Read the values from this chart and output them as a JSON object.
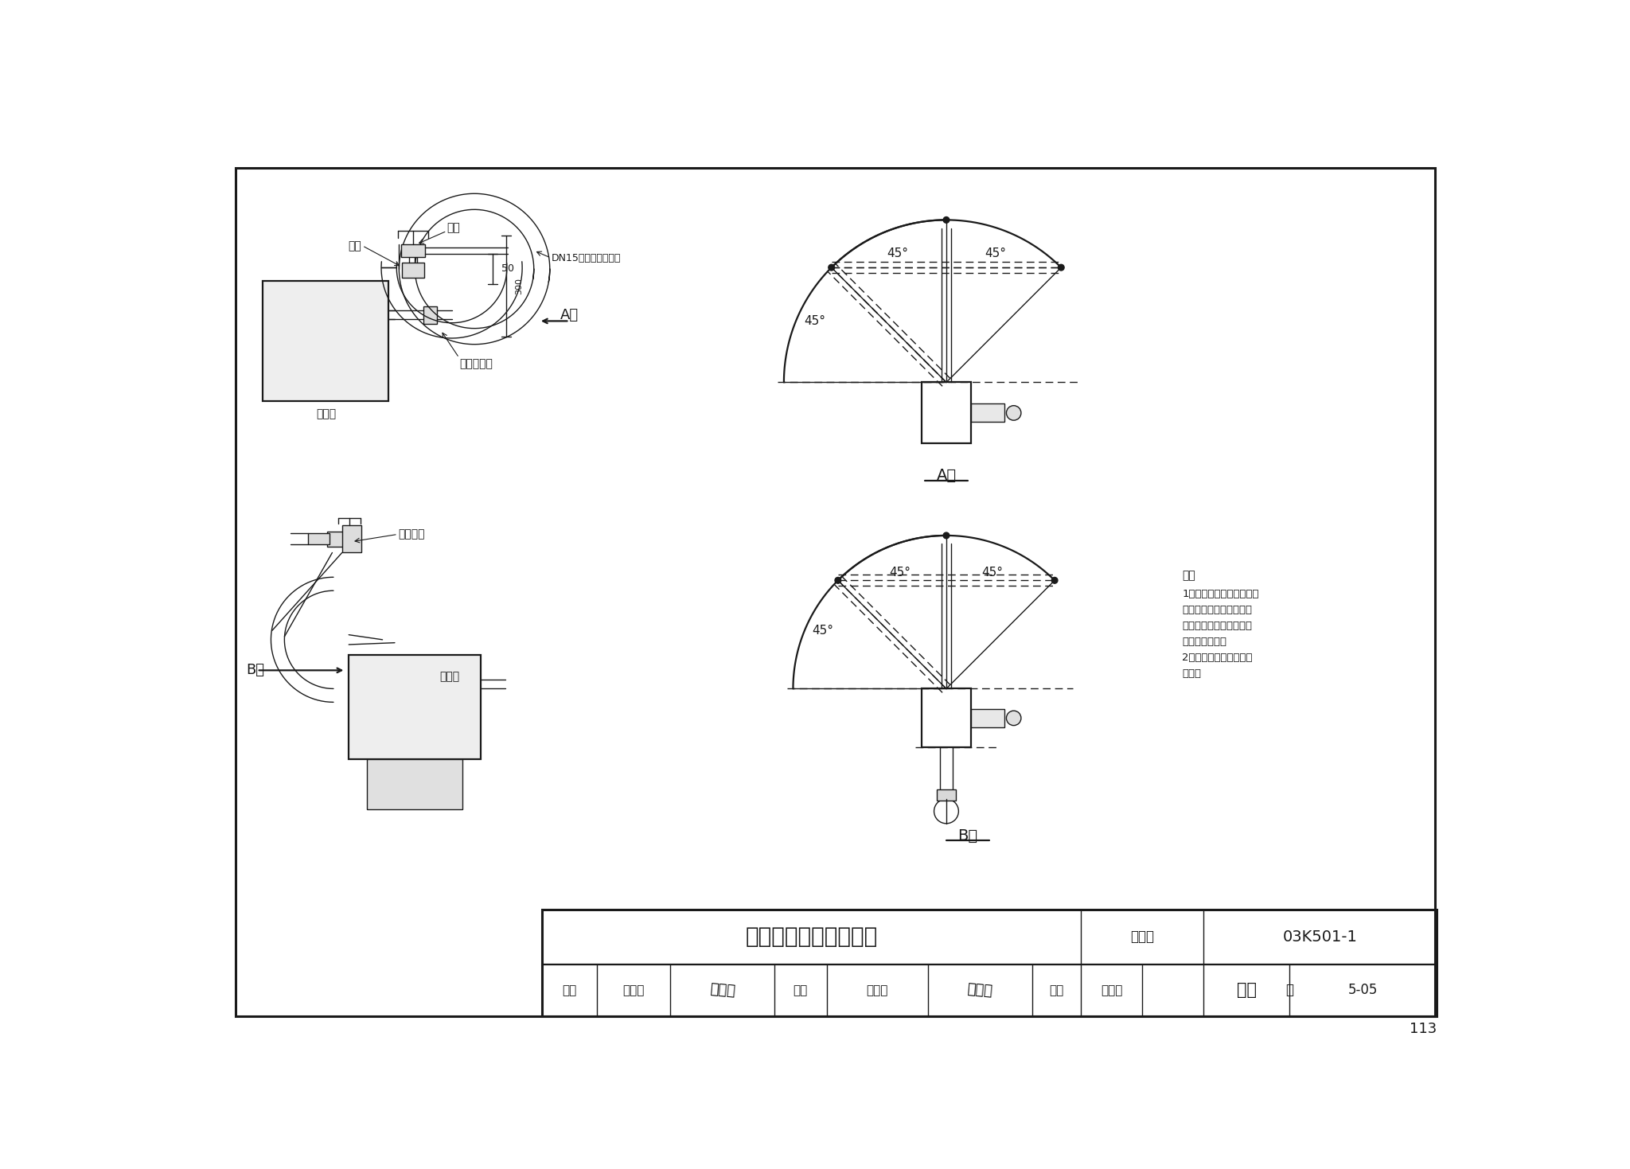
{
  "title": "燃气管与发生器的连接",
  "title_number": "03K501-1",
  "page_label": "5-05",
  "page_num": "113",
  "label_san_tong": "三通",
  "label_qiu_fa": "球阀",
  "label_dn15": "DN15不锈钢供气软管",
  "label_fa_sheng_qi_1": "发生器",
  "label_gong_ran_qi": "供燃气接头",
  "label_gong_qi_guan_lu": "供气管路",
  "label_fa_sheng_qi_2": "发生器",
  "label_a_xiang": "A向",
  "label_a_xiang2": "A向",
  "label_b_xiang": "B向",
  "label_b_xiang2": "B向",
  "shen_he": "审核",
  "duan_jie_yi": "段洁仪",
  "jiao_dui": "校对",
  "dai_hai_yang": "戴海洋",
  "she_ji": "设计",
  "chao_wei_wei": "朝卫卫",
  "tu_ji_hao": "图集号",
  "ye": "页",
  "note_title": "注：",
  "note_lines": [
    "1、安装连接供气软管时，",
    "应用管箍将供燃气接头固",
    "定住，以防其转动导致内",
    "部元件的损坏。",
    "2、球阀必须与燃气入口",
    "平行。"
  ],
  "bg_color": "#ffffff",
  "line_color": "#1a1a1a",
  "dim_50": "50",
  "dim_300": "300",
  "angle_45": "45°"
}
